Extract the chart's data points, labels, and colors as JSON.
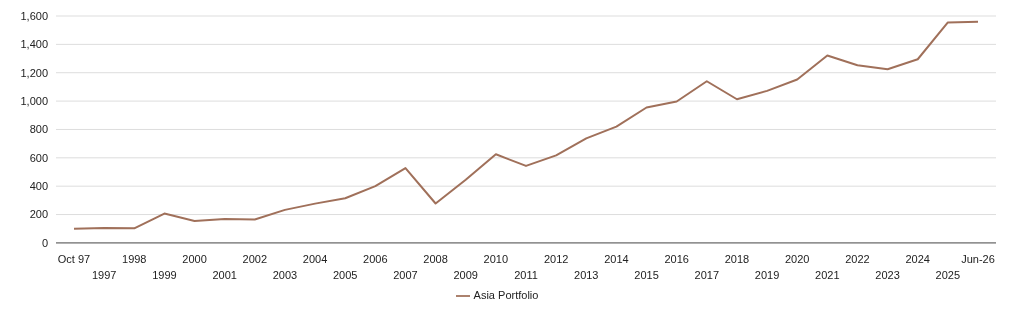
{
  "chart_data": {
    "type": "line",
    "categories": [
      "Oct 97",
      "1997",
      "1998",
      "1999",
      "2000",
      "2001",
      "2002",
      "2003",
      "2004",
      "2005",
      "2006",
      "2007",
      "2008",
      "2009",
      "2010",
      "2011",
      "2012",
      "2013",
      "2014",
      "2015",
      "2016",
      "2017",
      "2018",
      "2019",
      "2020",
      "2021",
      "2022",
      "2023",
      "2024",
      "2025",
      "Jun-26"
    ],
    "series": [
      {
        "name": "Asia Portfolio",
        "color": "#a0705a",
        "values": [
          100,
          105,
          103,
          207,
          155,
          168,
          165,
          233,
          277,
          315,
          400,
          528,
          278,
          445,
          625,
          543,
          617,
          737,
          820,
          955,
          997,
          1140,
          1013,
          1072,
          1152,
          1322,
          1253,
          1225,
          1295,
          1555,
          1560
        ]
      }
    ],
    "ylim": [
      0,
      1600
    ],
    "yticks": [
      {
        "value": 0,
        "label": "0"
      },
      {
        "value": 200,
        "label": "200"
      },
      {
        "value": 400,
        "label": "400"
      },
      {
        "value": 600,
        "label": "600"
      },
      {
        "value": 800,
        "label": "800"
      },
      {
        "value": 1000,
        "label": "1,000"
      },
      {
        "value": 1200,
        "label": "1,200"
      },
      {
        "value": 1400,
        "label": "1,400"
      },
      {
        "value": 1600,
        "label": "1,600"
      }
    ],
    "grid": "y",
    "legend": "bottom"
  }
}
